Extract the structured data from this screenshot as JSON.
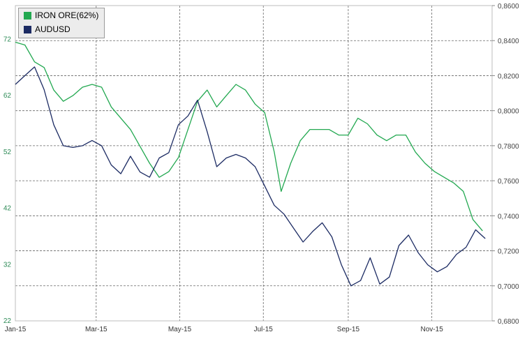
{
  "chart_data": {
    "type": "line",
    "x_ticks": [
      "Jan-15",
      "Mar-15",
      "May-15",
      "Jul-15",
      "Sep-15",
      "Nov-15"
    ],
    "left_axis": {
      "ticks": [
        22,
        32,
        42,
        52,
        62,
        72
      ],
      "range": [
        22,
        78
      ],
      "color": "#2e8b57"
    },
    "right_axis": {
      "ticks": [
        "0,6800",
        "0,7000",
        "0,7200",
        "0,7400",
        "0,7600",
        "0,7800",
        "0,8000",
        "0,8200",
        "0,8400",
        "0,8600"
      ],
      "range": [
        0.68,
        0.86
      ],
      "color": "#444444"
    },
    "legend_placement": "top-left",
    "grid": true,
    "series": [
      {
        "name": "IRON ORE(62%)",
        "axis": "left",
        "color": "#22a850",
        "points": [
          [
            "2015-01-01",
            71.5
          ],
          [
            "2015-01-08",
            71
          ],
          [
            "2015-01-15",
            68
          ],
          [
            "2015-01-22",
            67
          ],
          [
            "2015-01-29",
            63
          ],
          [
            "2015-02-05",
            61
          ],
          [
            "2015-02-12",
            62
          ],
          [
            "2015-02-19",
            63.5
          ],
          [
            "2015-02-26",
            64
          ],
          [
            "2015-03-05",
            63.5
          ],
          [
            "2015-03-12",
            60
          ],
          [
            "2015-03-19",
            58
          ],
          [
            "2015-03-26",
            56
          ],
          [
            "2015-04-02",
            53
          ],
          [
            "2015-04-09",
            50
          ],
          [
            "2015-04-16",
            47.5
          ],
          [
            "2015-04-23",
            48.5
          ],
          [
            "2015-04-30",
            51
          ],
          [
            "2015-05-07",
            56
          ],
          [
            "2015-05-14",
            61
          ],
          [
            "2015-05-21",
            63
          ],
          [
            "2015-05-28",
            60
          ],
          [
            "2015-06-04",
            62
          ],
          [
            "2015-06-11",
            64
          ],
          [
            "2015-06-18",
            63
          ],
          [
            "2015-06-25",
            60.5
          ],
          [
            "2015-07-02",
            59
          ],
          [
            "2015-07-09",
            52
          ],
          [
            "2015-07-14",
            45
          ],
          [
            "2015-07-21",
            50
          ],
          [
            "2015-07-28",
            54
          ],
          [
            "2015-08-04",
            56
          ],
          [
            "2015-08-11",
            56
          ],
          [
            "2015-08-18",
            56
          ],
          [
            "2015-08-25",
            55
          ],
          [
            "2015-09-01",
            55
          ],
          [
            "2015-09-08",
            58
          ],
          [
            "2015-09-15",
            57
          ],
          [
            "2015-09-22",
            55
          ],
          [
            "2015-09-29",
            54
          ],
          [
            "2015-10-06",
            55
          ],
          [
            "2015-10-13",
            55
          ],
          [
            "2015-10-20",
            52
          ],
          [
            "2015-10-27",
            50
          ],
          [
            "2015-11-03",
            48.5
          ],
          [
            "2015-11-10",
            47.5
          ],
          [
            "2015-11-17",
            46.5
          ],
          [
            "2015-11-24",
            45
          ],
          [
            "2015-12-01",
            40
          ],
          [
            "2015-12-08",
            38
          ]
        ]
      },
      {
        "name": "AUDUSD",
        "axis": "right",
        "color": "#1c2b63",
        "points": [
          [
            "2015-01-01",
            0.815
          ],
          [
            "2015-01-08",
            0.82
          ],
          [
            "2015-01-15",
            0.825
          ],
          [
            "2015-01-22",
            0.812
          ],
          [
            "2015-01-29",
            0.792
          ],
          [
            "2015-02-05",
            0.78
          ],
          [
            "2015-02-12",
            0.779
          ],
          [
            "2015-02-19",
            0.78
          ],
          [
            "2015-02-26",
            0.783
          ],
          [
            "2015-03-05",
            0.78
          ],
          [
            "2015-03-12",
            0.769
          ],
          [
            "2015-03-19",
            0.764
          ],
          [
            "2015-03-26",
            0.774
          ],
          [
            "2015-04-02",
            0.765
          ],
          [
            "2015-04-09",
            0.762
          ],
          [
            "2015-04-16",
            0.773
          ],
          [
            "2015-04-23",
            0.776
          ],
          [
            "2015-04-30",
            0.792
          ],
          [
            "2015-05-07",
            0.797
          ],
          [
            "2015-05-14",
            0.806
          ],
          [
            "2015-05-21",
            0.788
          ],
          [
            "2015-05-28",
            0.768
          ],
          [
            "2015-06-04",
            0.773
          ],
          [
            "2015-06-11",
            0.775
          ],
          [
            "2015-06-18",
            0.773
          ],
          [
            "2015-06-25",
            0.768
          ],
          [
            "2015-07-02",
            0.757
          ],
          [
            "2015-07-09",
            0.746
          ],
          [
            "2015-07-16",
            0.741
          ],
          [
            "2015-07-23",
            0.733
          ],
          [
            "2015-07-30",
            0.725
          ],
          [
            "2015-08-06",
            0.731
          ],
          [
            "2015-08-13",
            0.736
          ],
          [
            "2015-08-20",
            0.728
          ],
          [
            "2015-08-27",
            0.712
          ],
          [
            "2015-09-03",
            0.7
          ],
          [
            "2015-09-10",
            0.703
          ],
          [
            "2015-09-17",
            0.716
          ],
          [
            "2015-09-24",
            0.701
          ],
          [
            "2015-10-01",
            0.705
          ],
          [
            "2015-10-08",
            0.723
          ],
          [
            "2015-10-15",
            0.729
          ],
          [
            "2015-10-22",
            0.719
          ],
          [
            "2015-10-29",
            0.712
          ],
          [
            "2015-11-05",
            0.708
          ],
          [
            "2015-11-12",
            0.711
          ],
          [
            "2015-11-19",
            0.718
          ],
          [
            "2015-11-26",
            0.722
          ],
          [
            "2015-12-03",
            0.732
          ],
          [
            "2015-12-10",
            0.727
          ]
        ]
      }
    ]
  }
}
